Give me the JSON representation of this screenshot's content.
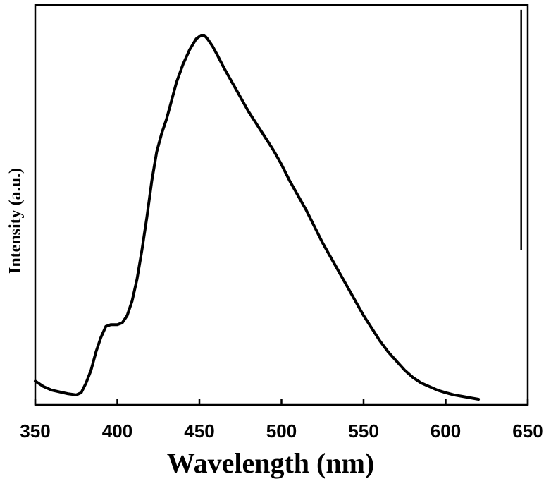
{
  "chart_data": {
    "type": "line",
    "title": "",
    "xlabel": "Wavelength (nm)",
    "ylabel": "Intensity (a.u.)",
    "xlim": [
      350,
      650
    ],
    "ylim": [
      0,
      1.05
    ],
    "x_ticks": [
      "350",
      "400",
      "450",
      "500",
      "550",
      "600",
      "650"
    ],
    "y_ticks_shown": false,
    "grid": false,
    "legend": "none",
    "series": [
      {
        "color": "#000000",
        "x": [
          350,
          355,
          360,
          365,
          370,
          375,
          378,
          381,
          384,
          387,
          390,
          393,
          396,
          400,
          403,
          406,
          409,
          412,
          415,
          418,
          421,
          424,
          427,
          430,
          433,
          436,
          440,
          444,
          448,
          451,
          453,
          455,
          458,
          461,
          465,
          470,
          475,
          480,
          485,
          490,
          495,
          500,
          505,
          510,
          515,
          520,
          525,
          530,
          535,
          540,
          545,
          550,
          555,
          560,
          565,
          570,
          575,
          580,
          585,
          590,
          595,
          600,
          605,
          610,
          615,
          620
        ],
        "y": [
          0.05,
          0.035,
          0.025,
          0.02,
          0.015,
          0.012,
          0.018,
          0.045,
          0.08,
          0.13,
          0.17,
          0.2,
          0.205,
          0.205,
          0.21,
          0.23,
          0.27,
          0.33,
          0.41,
          0.5,
          0.6,
          0.68,
          0.73,
          0.77,
          0.82,
          0.87,
          0.92,
          0.96,
          0.99,
          1.0,
          1.0,
          0.99,
          0.97,
          0.945,
          0.91,
          0.87,
          0.83,
          0.79,
          0.755,
          0.72,
          0.685,
          0.645,
          0.6,
          0.56,
          0.52,
          0.475,
          0.43,
          0.39,
          0.35,
          0.31,
          0.27,
          0.23,
          0.195,
          0.16,
          0.13,
          0.105,
          0.08,
          0.06,
          0.045,
          0.035,
          0.025,
          0.018,
          0.012,
          0.008,
          0.004,
          0.0
        ]
      }
    ],
    "annotations": [
      {
        "type": "vertical-line",
        "x": 646,
        "y_from": 0.41,
        "y_to": 1.07
      }
    ]
  }
}
